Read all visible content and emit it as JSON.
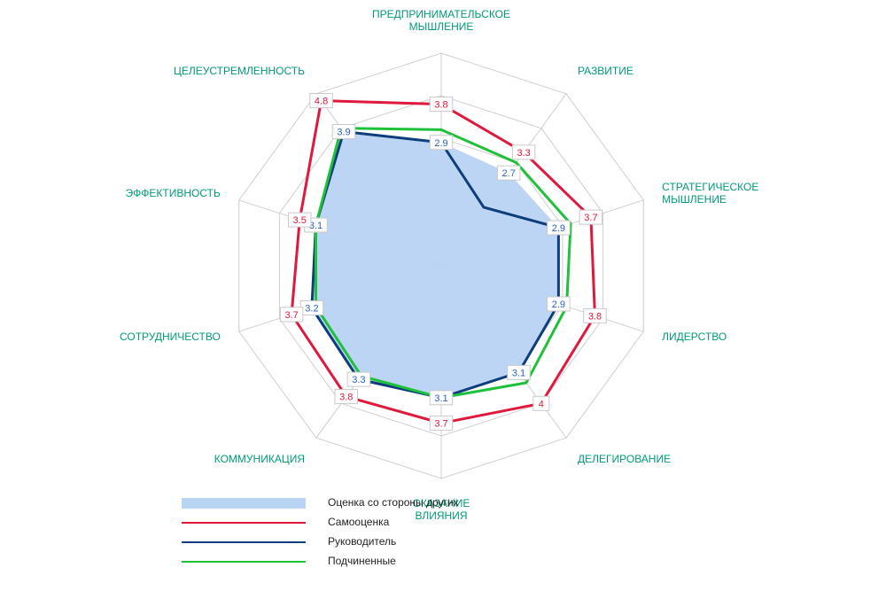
{
  "chart_data": {
    "type": "radar",
    "axes": [
      [
        "ПРЕДПРИНИМАТЕЛЬСКОЕ",
        "МЫШЛЕНИЕ"
      ],
      [
        "РАЗВИТИЕ"
      ],
      [
        "СТРАТЕГИЧЕСКОЕ",
        "МЫШЛЕНИЕ"
      ],
      [
        "ЛИДЕРСТВО"
      ],
      [
        "ДЕЛЕГИРОВАНИЕ"
      ],
      [
        "ОКАЗАНИЕ",
        "ВЛИЯНИЯ"
      ],
      [
        "КОММУНИКАЦИЯ"
      ],
      [
        "СОТРУДНИЧЕСТВО"
      ],
      [
        "ЭФФЕКТИВНОСТЬ"
      ],
      [
        "ЦЕЛЕУСТРЕМЛЕННОСТЬ"
      ]
    ],
    "rlim": [
      0,
      5
    ],
    "ring_count": 5,
    "series": [
      {
        "name": "Оценка со стороны других",
        "kind": "area",
        "color": "#b9d3f3",
        "values": [
          2.9,
          2.7,
          2.9,
          2.9,
          3.1,
          3.1,
          3.3,
          3.2,
          3.1,
          3.9
        ],
        "labels": [
          "2.9",
          "2.7",
          "2.9",
          "2.9",
          "3.1",
          "3.1",
          "3.3",
          "3.2",
          "3.1",
          "3.9"
        ],
        "label_color": "#2b62c0"
      },
      {
        "name": "Самооценка",
        "kind": "line",
        "color": "#e0183c",
        "values": [
          3.8,
          3.3,
          3.7,
          3.8,
          4.0,
          3.7,
          3.8,
          3.7,
          3.5,
          4.8
        ],
        "labels": [
          "3.8",
          "3.3",
          "3.7",
          "3.8",
          "4",
          "3.7",
          "3.8",
          "3.7",
          "3.5",
          "4.8"
        ],
        "label_color": "#e0183c"
      },
      {
        "name": "Руководитель",
        "kind": "line",
        "color": "#0d3d7a",
        "values": [
          2.9,
          1.7,
          2.9,
          2.9,
          3.1,
          3.1,
          3.3,
          3.2,
          3.1,
          3.9
        ]
      },
      {
        "name": "Подчиненные",
        "kind": "line",
        "color": "#1ec23a",
        "values": [
          3.2,
          3.0,
          3.2,
          3.1,
          3.4,
          3.1,
          3.2,
          3.1,
          3.1,
          4.0
        ]
      }
    ],
    "grid": true,
    "legend_position": "bottom-left"
  }
}
